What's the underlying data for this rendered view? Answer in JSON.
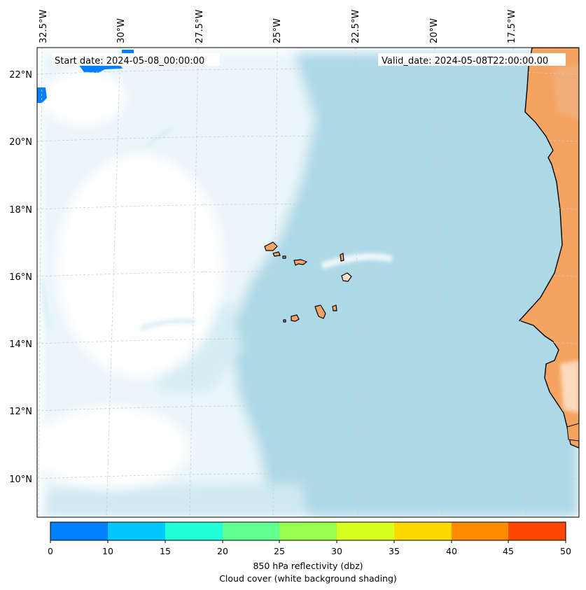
{
  "map": {
    "longitude_labels": [
      "32.5°W",
      "30°W",
      "27.5°W",
      "25°W",
      "22.5°W",
      "20°W",
      "17.5°W"
    ],
    "latitude_labels": [
      "22°N",
      "20°N",
      "18°N",
      "16°N",
      "14°N",
      "12°N",
      "10°N"
    ],
    "start_date_label": "Start date: 2024-05-08_00:00:00",
    "valid_date_label": "Valid_date: 2024-05-08T22:00:00.00",
    "colors": {
      "ocean_cloud": "#add8e6",
      "land": "#f4a460",
      "coastline": "#000000",
      "gridline": "#cccccc"
    }
  },
  "colorbar": {
    "ticks": [
      "0",
      "10",
      "15",
      "20",
      "25",
      "30",
      "35",
      "40",
      "45",
      "50"
    ],
    "colors": [
      "#0080ff",
      "#00c8ff",
      "#20ffd8",
      "#60ff90",
      "#98ff50",
      "#d8ff20",
      "#ffd800",
      "#ff8c00",
      "#ff4800"
    ],
    "title_line1": "850 hPa reflectivity (dbz)",
    "title_line2": "Cloud cover (white background shading)"
  }
}
